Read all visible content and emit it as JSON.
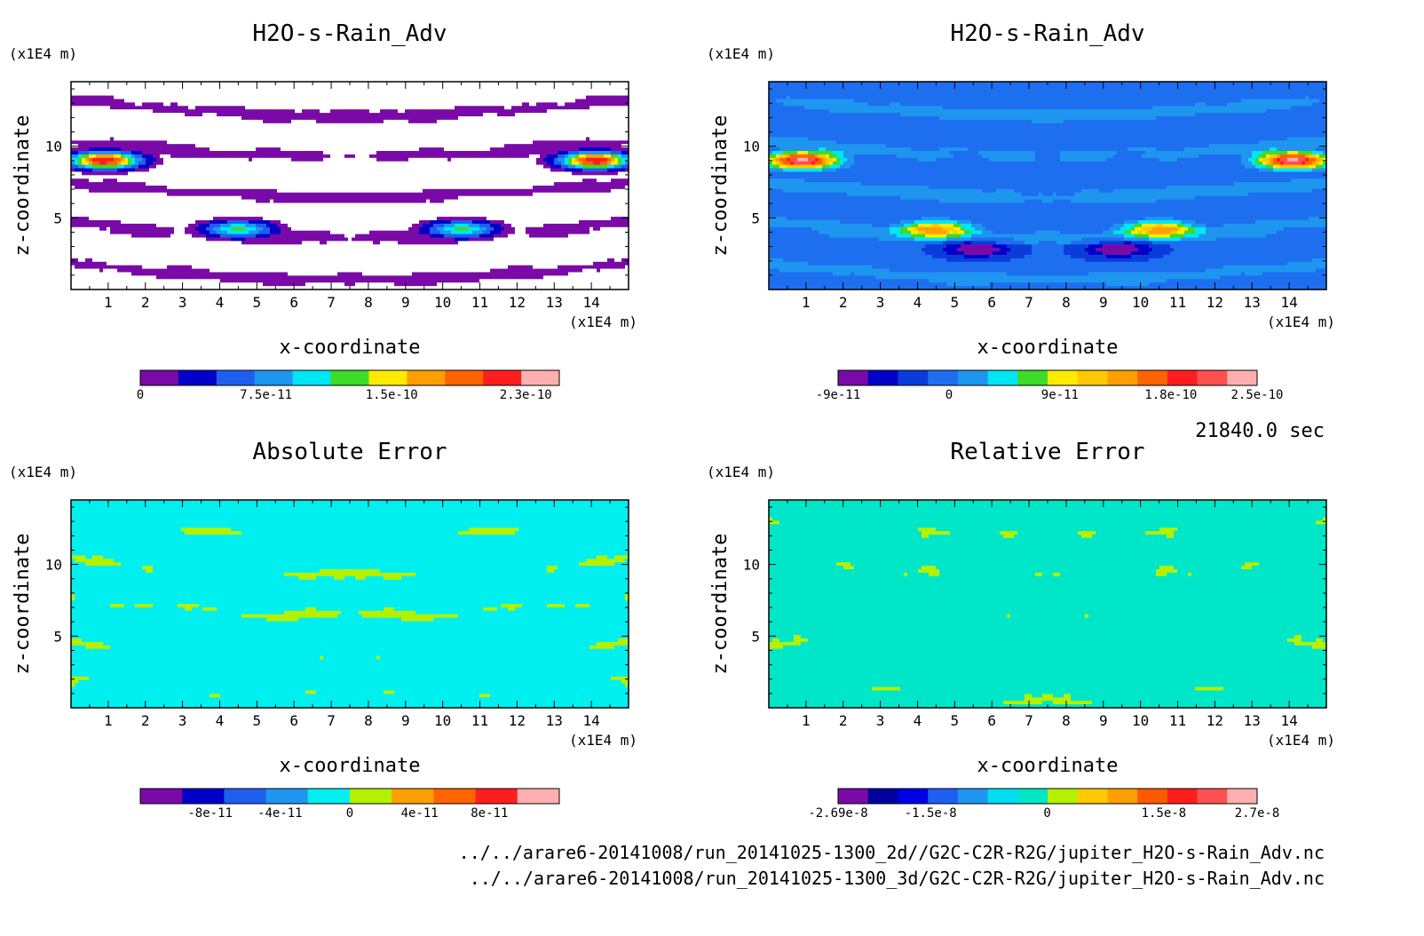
{
  "time_label": "21840.0 sec",
  "files": [
    "../../arare6-20141008/run_20141025-1300_2d//G2C-C2R-R2G/jupiter_H2O-s-Rain_Adv.nc",
    "../../arare6-20141008/run_20141025-1300_3d/G2C-C2R-R2G/jupiter_H2O-s-Rain_Adv.nc"
  ],
  "chart_data": [
    {
      "type": "heatmap",
      "title": "H2O-s-Rain_Adv",
      "xlabel": "x-coordinate",
      "ylabel": "z-coordinate",
      "x_unit": "(x1E4 m)",
      "y_unit": "(x1E4 m)",
      "xlim": [
        0,
        15
      ],
      "ylim": [
        0,
        14.5
      ],
      "xticks": [
        1,
        2,
        3,
        4,
        5,
        6,
        7,
        8,
        9,
        10,
        11,
        12,
        13,
        14
      ],
      "yticks": [
        5,
        10
      ],
      "colorbar": {
        "min": 0,
        "max": 2.5e-10,
        "labels": [
          "0",
          "7.5e-11",
          "1.5e-10",
          "2.3e-10"
        ],
        "label_values": [
          0,
          7.5e-11,
          1.5e-10,
          2.3e-10
        ],
        "colors": [
          "#7a0aa8",
          "#0000c8",
          "#1e5ff0",
          "#1e96f0",
          "#00e6f5",
          "#3cdc28",
          "#ffeb00",
          "#ffa000",
          "#ff6400",
          "#ff1e1e",
          "#ffafaf"
        ],
        "white_band": "#ffffff"
      },
      "blobs": [
        {
          "x": 0.9,
          "y": 9.0,
          "v": 2.3e-10
        },
        {
          "x": 14.1,
          "y": 9.0,
          "v": 2.3e-10
        },
        {
          "x": 4.5,
          "y": 4.2,
          "v": 1.2e-10
        },
        {
          "x": 10.5,
          "y": 4.2,
          "v": 1.2e-10
        }
      ]
    },
    {
      "type": "heatmap",
      "title": "H2O-s-Rain_Adv",
      "xlabel": "x-coordinate",
      "ylabel": "z-coordinate",
      "x_unit": "(x1E4 m)",
      "y_unit": "(x1E4 m)",
      "xlim": [
        0,
        15
      ],
      "ylim": [
        0,
        14.5
      ],
      "xticks": [
        1,
        2,
        3,
        4,
        5,
        6,
        7,
        8,
        9,
        10,
        11,
        12,
        13,
        14
      ],
      "yticks": [
        5,
        10
      ],
      "colorbar": {
        "min": -9e-11,
        "max": 2.5e-10,
        "labels": [
          "-9e-11",
          "0",
          "9e-11",
          "1.8e-10",
          "2.5e-10"
        ],
        "label_values": [
          -9e-11,
          0,
          9e-11,
          1.8e-10,
          2.5e-10
        ],
        "colors": [
          "#7a0aa8",
          "#0000c8",
          "#0a3cdc",
          "#1e6ef0",
          "#1e96f0",
          "#00e6f5",
          "#3cdc28",
          "#ffeb00",
          "#ffc800",
          "#ffa000",
          "#ff6400",
          "#ff1e1e",
          "#ff5050",
          "#ffafaf"
        ]
      },
      "blobs": [
        {
          "x": 0.9,
          "y": 9.0,
          "v": 2.5e-10
        },
        {
          "x": 14.1,
          "y": 9.0,
          "v": 2.5e-10
        },
        {
          "x": 4.5,
          "y": 4.2,
          "v": 1.5e-10
        },
        {
          "x": 10.5,
          "y": 4.2,
          "v": 1.5e-10
        },
        {
          "x": 5.6,
          "y": 2.8,
          "v": -8e-11
        },
        {
          "x": 9.4,
          "y": 2.8,
          "v": -8e-11
        }
      ]
    },
    {
      "type": "heatmap",
      "title": "Absolute Error",
      "xlabel": "x-coordinate",
      "ylabel": "z-coordinate",
      "x_unit": "(x1E4 m)",
      "y_unit": "(x1E4 m)",
      "xlim": [
        0,
        15
      ],
      "ylim": [
        0,
        14.5
      ],
      "xticks": [
        1,
        2,
        3,
        4,
        5,
        6,
        7,
        8,
        9,
        10,
        11,
        12,
        13,
        14
      ],
      "yticks": [
        5,
        10
      ],
      "colorbar": {
        "min": -1.2e-10,
        "max": 1.2e-10,
        "labels": [
          "-8e-11",
          "-4e-11",
          "0",
          "4e-11",
          "8e-11"
        ],
        "label_values": [
          -8e-11,
          -4e-11,
          0,
          4e-11,
          8e-11
        ],
        "colors": [
          "#7a0aa8",
          "#0000c8",
          "#1e5ff0",
          "#1e96f0",
          "#00f0f0",
          "#b4f000",
          "#ffa000",
          "#ff6400",
          "#ff1e1e",
          "#ffafaf"
        ]
      }
    },
    {
      "type": "heatmap",
      "title": "Relative Error",
      "xlabel": "x-coordinate",
      "ylabel": "z-coordinate",
      "x_unit": "(x1E4 m)",
      "y_unit": "(x1E4 m)",
      "xlim": [
        0,
        15
      ],
      "ylim": [
        0,
        14.5
      ],
      "xticks": [
        1,
        2,
        3,
        4,
        5,
        6,
        7,
        8,
        9,
        10,
        11,
        12,
        13,
        14
      ],
      "yticks": [
        5,
        10
      ],
      "colorbar": {
        "min": -2.69e-08,
        "max": 2.7e-08,
        "labels": [
          "-2.69e-8",
          "-1.5e-8",
          "0",
          "1.5e-8",
          "2.7e-8"
        ],
        "label_values": [
          -2.69e-08,
          -1.5e-08,
          0,
          1.5e-08,
          2.7e-08
        ],
        "colors": [
          "#7a0aa8",
          "#0000a0",
          "#0000e6",
          "#1e5ff0",
          "#1e96f0",
          "#00dcf0",
          "#00e6c8",
          "#b4f000",
          "#ffc800",
          "#ffa000",
          "#ff5a00",
          "#ff1e1e",
          "#ff5050",
          "#ffafaf"
        ]
      }
    }
  ]
}
